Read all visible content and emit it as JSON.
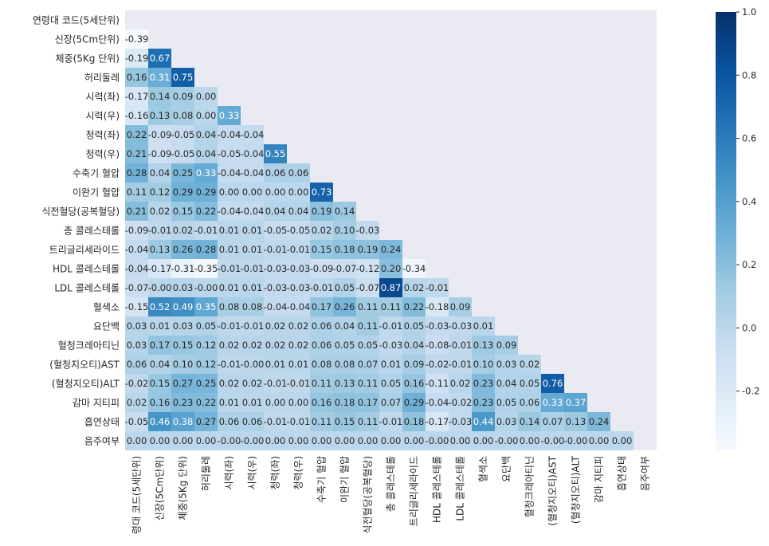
{
  "chart_data": {
    "type": "heatmap",
    "mask": "upper-triangle",
    "labels": [
      "연령대 코드(5세단위)",
      "신장(5Cm단위)",
      "체중(5Kg 단위)",
      "허리둘레",
      "시력(좌)",
      "시력(우)",
      "청력(좌)",
      "청력(우)",
      "수축기 혈압",
      "이완기 혈압",
      "식전혈당(공복혈당)",
      "총 콜레스테롤",
      "트리글리세라이드",
      "HDL 콜레스테롤",
      "LDL 콜레스테롤",
      "혈색소",
      "요단백",
      "혈청크레아티닌",
      "(혈청지오티)AST",
      "(혈청지오티)ALT",
      "감마 지티피",
      "흡연상태",
      "음주여부"
    ],
    "x_tick_labels": [
      "령대 코드(5세단위)",
      "신장(5Cm단위)",
      "체중(5Kg 단위)",
      "허리둘레",
      "시력(좌)",
      "시력(우)",
      "청력(좌)",
      "청력(우)",
      "수축기 혈압",
      "이완기 혈압",
      "식전혈당(공복혈당)",
      "총 콜레스테롤",
      "트리글리세라이드",
      "HDL 콜레스테롤",
      "LDL 콜레스테롤",
      "혈색소",
      "요단백",
      "혈청크레아티닌",
      "(혈청지오티)AST",
      "(혈청지오티)ALT",
      "감마 지티피",
      "흡연상태",
      "음주여부"
    ],
    "values": [
      [],
      [
        "-0.39"
      ],
      [
        "-0.19",
        "0.67"
      ],
      [
        "0.16",
        "0.31",
        "0.75"
      ],
      [
        "-0.17",
        "0.14",
        "0.09",
        "0.00"
      ],
      [
        "-0.16",
        "0.13",
        "0.08",
        "0.00",
        "0.33"
      ],
      [
        "0.22",
        "-0.09",
        "-0.05",
        "0.04",
        "-0.04",
        "-0.04"
      ],
      [
        "0.21",
        "-0.09",
        "-0.05",
        "0.04",
        "-0.05",
        "-0.04",
        "0.55"
      ],
      [
        "0.28",
        "0.04",
        "0.25",
        "0.33",
        "-0.04",
        "-0.04",
        "0.06",
        "0.06"
      ],
      [
        "0.11",
        "0.12",
        "0.29",
        "0.29",
        "0.00",
        "0.00",
        "0.00",
        "0.00",
        "0.73"
      ],
      [
        "0.21",
        "0.02",
        "0.15",
        "0.22",
        "-0.04",
        "-0.04",
        "0.04",
        "0.04",
        "0.19",
        "0.14"
      ],
      [
        "-0.09",
        "-0.01",
        "0.02",
        "-0.01",
        "0.01",
        "0.01",
        "-0.05",
        "-0.05",
        "0.02",
        "0.10",
        "-0.03"
      ],
      [
        "-0.04",
        "0.13",
        "0.26",
        "0.28",
        "0.01",
        "0.01",
        "-0.01",
        "-0.01",
        "0.15",
        "0.18",
        "0.19",
        "0.24"
      ],
      [
        "-0.04",
        "-0.17",
        "-0.31",
        "-0.35",
        "-0.01",
        "-0.01",
        "-0.03",
        "-0.03",
        "-0.09",
        "-0.07",
        "-0.12",
        "0.20",
        "-0.34"
      ],
      [
        "-0.07",
        "-0.00",
        "0.03",
        "-0.00",
        "0.01",
        "0.01",
        "-0.03",
        "-0.03",
        "-0.01",
        "0.05",
        "-0.07",
        "0.87",
        "0.02",
        "-0.01"
      ],
      [
        "-0.15",
        "0.52",
        "0.49",
        "0.35",
        "0.08",
        "0.08",
        "-0.04",
        "-0.04",
        "0.17",
        "0.26",
        "0.11",
        "0.11",
        "0.22",
        "-0.18",
        "0.09"
      ],
      [
        "0.03",
        "0.01",
        "0.03",
        "0.05",
        "-0.01",
        "-0.01",
        "0.02",
        "0.02",
        "0.06",
        "0.04",
        "0.11",
        "-0.01",
        "0.05",
        "-0.03",
        "-0.03",
        "0.01"
      ],
      [
        "0.03",
        "0.17",
        "0.15",
        "0.12",
        "0.02",
        "0.02",
        "0.02",
        "0.02",
        "0.06",
        "0.05",
        "0.05",
        "-0.03",
        "0.04",
        "-0.08",
        "-0.01",
        "0.13",
        "0.09"
      ],
      [
        "0.06",
        "0.04",
        "0.10",
        "0.12",
        "-0.01",
        "-0.00",
        "0.01",
        "0.01",
        "0.08",
        "0.08",
        "0.07",
        "0.01",
        "0.09",
        "-0.02",
        "-0.01",
        "0.10",
        "0.03",
        "0.02"
      ],
      [
        "-0.02",
        "0.15",
        "0.27",
        "0.25",
        "0.02",
        "0.02",
        "-0.01",
        "-0.01",
        "0.11",
        "0.13",
        "0.11",
        "0.05",
        "0.16",
        "-0.11",
        "0.02",
        "0.23",
        "0.04",
        "0.05",
        "0.76"
      ],
      [
        "0.02",
        "0.16",
        "0.23",
        "0.22",
        "0.01",
        "0.01",
        "0.00",
        "0.00",
        "0.16",
        "0.18",
        "0.17",
        "0.07",
        "0.29",
        "-0.04",
        "-0.02",
        "0.23",
        "0.05",
        "0.06",
        "0.33",
        "0.37"
      ],
      [
        "-0.05",
        "0.46",
        "0.38",
        "0.27",
        "0.06",
        "0.06",
        "-0.01",
        "-0.01",
        "0.11",
        "0.15",
        "0.11",
        "-0.01",
        "0.18",
        "-0.17",
        "-0.03",
        "0.44",
        "0.03",
        "0.14",
        "0.07",
        "0.13",
        "0.24"
      ],
      [
        "0.00",
        "0.00",
        "0.00",
        "0.00",
        "-0.00",
        "-0.00",
        "0.00",
        "0.00",
        "0.00",
        "0.00",
        "0.00",
        "0.00",
        "0.00",
        "-0.00",
        "0.00",
        "0.00",
        "-0.00",
        "0.00",
        "-0.00",
        "-0.00",
        "0.00",
        "0.00"
      ]
    ],
    "colorbar": {
      "min": -0.39,
      "max": 1.0,
      "ticks": [
        "1.0",
        "0.8",
        "0.6",
        "0.4",
        "0.2",
        "0.0",
        "-0.2"
      ],
      "colormap": [
        "#f7fbff",
        "#deebf7",
        "#c6dbef",
        "#9ecae1",
        "#6baed6",
        "#4292c6",
        "#2171b5",
        "#08519c",
        "#08306b"
      ]
    },
    "background_color": "#eaeaf2"
  }
}
